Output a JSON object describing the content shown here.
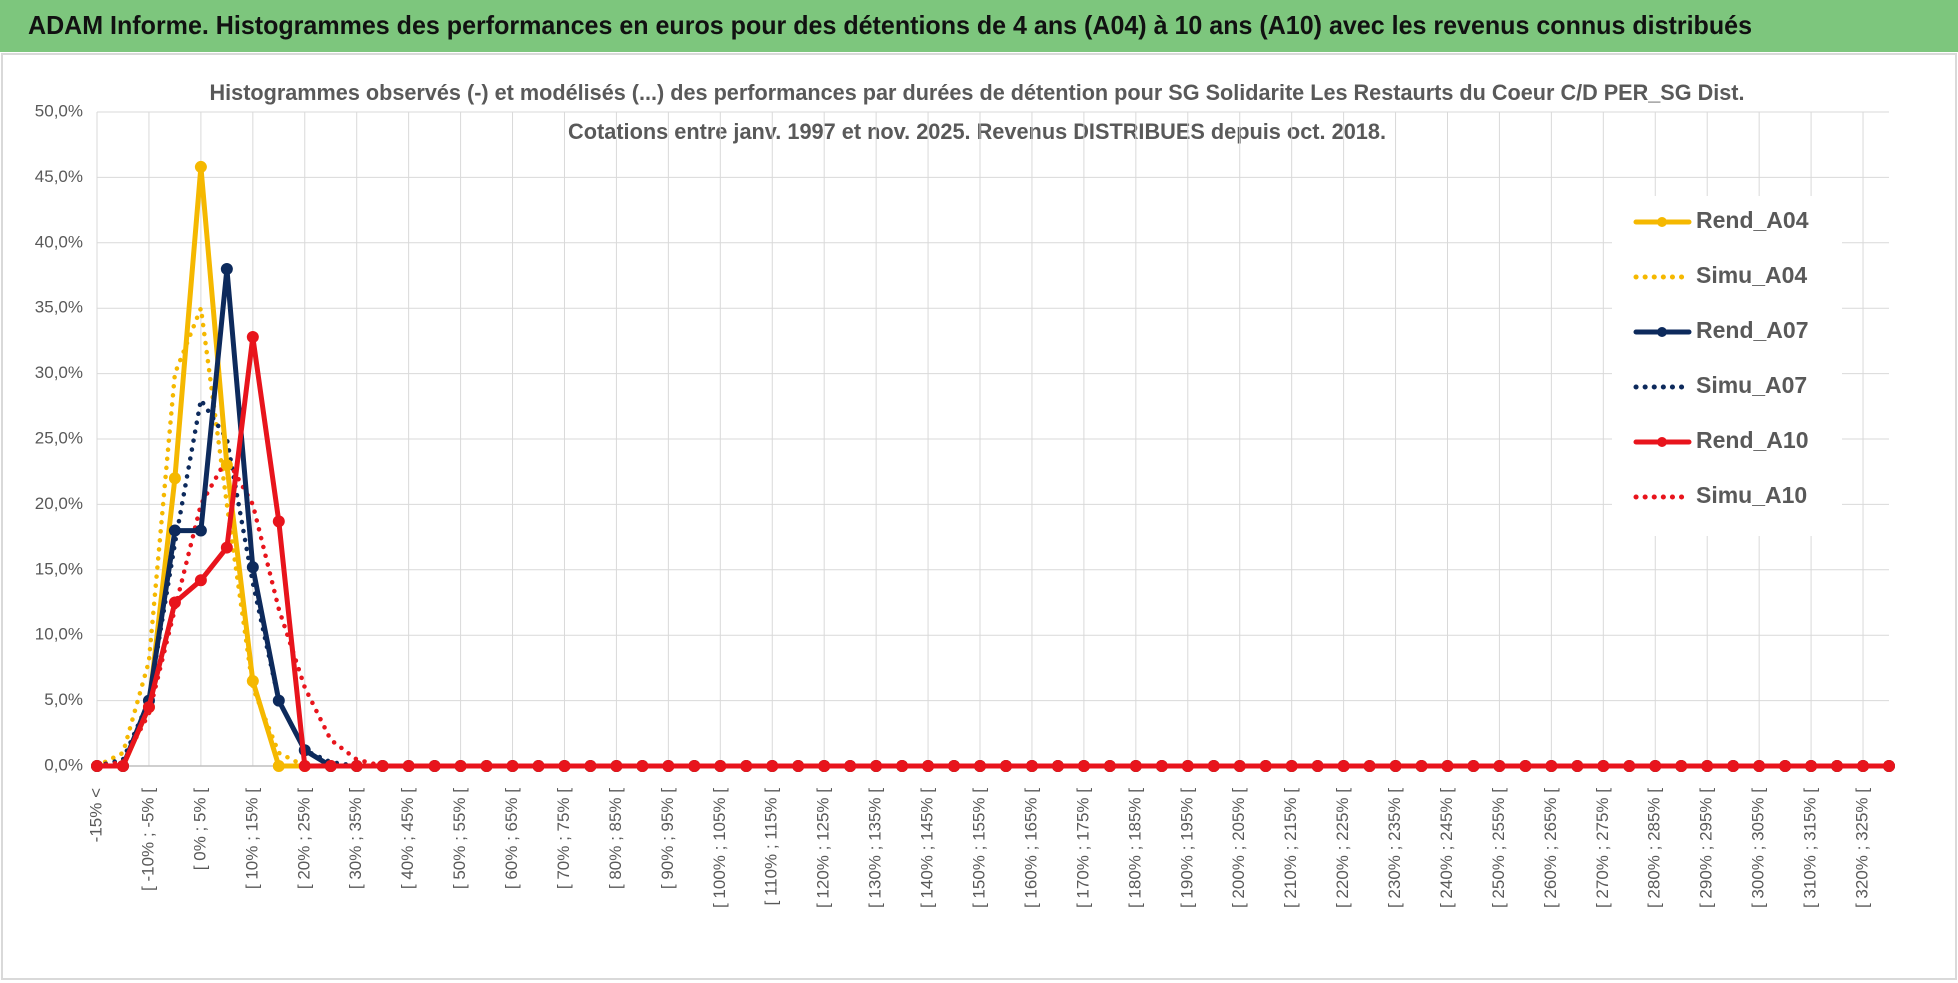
{
  "header": {
    "title": "ADAM Informe. Histogrammes des performances en euros pour des détentions de 4 ans (A04) à 10 ans (A10) avec les revenus connus distribués"
  },
  "chart_data": {
    "type": "line",
    "title": "Histogrammes observés (-) et modélisés (...) des performances par durées de détention pour SG Solidarite Les Restaurts du Coeur C/D PER_SG Dist.",
    "subtitle": "Cotations entre janv. 1997 et nov. 2025. Revenus DISTRIBUES depuis oct. 2018.",
    "categories": [
      "-15% <",
      null,
      "[ -10% ; -5% [",
      null,
      "[ 0% ; 5% [",
      null,
      "[ 10% ; 15% [",
      null,
      "[ 20% ; 25% [",
      null,
      "[ 30% ; 35% [",
      null,
      "[ 40% ; 45% [",
      null,
      "[ 50% ; 55% [",
      null,
      "[ 60% ; 65% [",
      null,
      "[ 70% ; 75% [",
      null,
      "[ 80% ; 85% [",
      null,
      "[ 90% ; 95% [",
      null,
      "[ 100% ; 105% [",
      null,
      "[ 110% ; 115% [",
      null,
      "[ 120% ; 125% [",
      null,
      "[ 130% ; 135% [",
      null,
      "[ 140% ; 145% [",
      null,
      "[ 150% ; 155% [",
      null,
      "[ 160% ; 165% [",
      null,
      "[ 170% ; 175% [",
      null,
      "[ 180% ; 185% [",
      null,
      "[ 190% ; 195% [",
      null,
      "[ 200% ; 205% [",
      null,
      "[ 210% ; 215% [",
      null,
      "[ 220% ; 225% [",
      null,
      "[ 230% ; 235% [",
      null,
      "[ 240% ; 245% [",
      null,
      "[ 250% ; 255% [",
      null,
      "[ 260% ; 265% [",
      null,
      "[ 270% ; 275% [",
      null,
      "[ 280% ; 285% [",
      null,
      "[ 290% ; 295% [",
      null,
      "[ 300% ; 305% [",
      null,
      "[ 310% ; 315% [",
      null,
      "[ 320% ; 325% [",
      null
    ],
    "series": [
      {
        "name": "Rend_A04",
        "color": "#f5b800",
        "line_style": "solid",
        "markers": true,
        "values": [
          0,
          0,
          4.5,
          22,
          45.8,
          23,
          6.5,
          0,
          0,
          0,
          0,
          0,
          0,
          0,
          0,
          0,
          0,
          0,
          0,
          0,
          0,
          0,
          0,
          0,
          0,
          0,
          0,
          0,
          0,
          0,
          0,
          0,
          0,
          0,
          0,
          0,
          0,
          0,
          0,
          0,
          0,
          0,
          0,
          0,
          0,
          0,
          0,
          0,
          0,
          0,
          0,
          0,
          0,
          0,
          0,
          0,
          0,
          0,
          0,
          0,
          0,
          0,
          0,
          0,
          0,
          0,
          0,
          0,
          0,
          0
        ]
      },
      {
        "name": "Simu_A04",
        "color": "#f5b800",
        "line_style": "dotted",
        "markers": false,
        "values": [
          0,
          1,
          8,
          30,
          35,
          20,
          6,
          1,
          0,
          0,
          0,
          0,
          0,
          0,
          0,
          0,
          0,
          0,
          0,
          0,
          0,
          0,
          0,
          0,
          0,
          0,
          0,
          0,
          0,
          0,
          0,
          0,
          0,
          0,
          0,
          0,
          0,
          0,
          0,
          0,
          0,
          0,
          0,
          0,
          0,
          0,
          0,
          0,
          0,
          0,
          0,
          0,
          0,
          0,
          0,
          0,
          0,
          0,
          0,
          0,
          0,
          0,
          0,
          0,
          0,
          0,
          0,
          0,
          0,
          0
        ]
      },
      {
        "name": "Rend_A07",
        "color": "#0d2a5c",
        "line_style": "solid",
        "markers": true,
        "values": [
          0,
          0,
          5,
          18,
          18,
          38,
          15.2,
          5,
          1.2,
          0,
          0,
          0,
          0,
          0,
          0,
          0,
          0,
          0,
          0,
          0,
          0,
          0,
          0,
          0,
          0,
          0,
          0,
          0,
          0,
          0,
          0,
          0,
          0,
          0,
          0,
          0,
          0,
          0,
          0,
          0,
          0,
          0,
          0,
          0,
          0,
          0,
          0,
          0,
          0,
          0,
          0,
          0,
          0,
          0,
          0,
          0,
          0,
          0,
          0,
          0,
          0,
          0,
          0,
          0,
          0,
          0,
          0,
          0,
          0,
          0
        ]
      },
      {
        "name": "Simu_A07",
        "color": "#0d2a5c",
        "line_style": "dotted",
        "markers": false,
        "values": [
          0,
          0.5,
          5,
          17,
          28,
          25,
          14,
          5,
          1.2,
          0.3,
          0,
          0,
          0,
          0,
          0,
          0,
          0,
          0,
          0,
          0,
          0,
          0,
          0,
          0,
          0,
          0,
          0,
          0,
          0,
          0,
          0,
          0,
          0,
          0,
          0,
          0,
          0,
          0,
          0,
          0,
          0,
          0,
          0,
          0,
          0,
          0,
          0,
          0,
          0,
          0,
          0,
          0,
          0,
          0,
          0,
          0,
          0,
          0,
          0,
          0,
          0,
          0,
          0,
          0,
          0,
          0,
          0,
          0,
          0,
          0
        ]
      },
      {
        "name": "Rend_A10",
        "color": "#e8141c",
        "line_style": "solid",
        "markers": true,
        "values": [
          0,
          0,
          4.5,
          12.5,
          14.2,
          16.7,
          32.8,
          18.7,
          0,
          0,
          0,
          0,
          0,
          0,
          0,
          0,
          0,
          0,
          0,
          0,
          0,
          0,
          0,
          0,
          0,
          0,
          0,
          0,
          0,
          0,
          0,
          0,
          0,
          0,
          0,
          0,
          0,
          0,
          0,
          0,
          0,
          0,
          0,
          0,
          0,
          0,
          0,
          0,
          0,
          0,
          0,
          0,
          0,
          0,
          0,
          0,
          0,
          0,
          0,
          0,
          0,
          0,
          0,
          0,
          0,
          0,
          0,
          0,
          0,
          0
        ]
      },
      {
        "name": "Simu_A10",
        "color": "#e8141c",
        "line_style": "dotted",
        "markers": false,
        "values": [
          0,
          0.3,
          4,
          12,
          20,
          23.5,
          20,
          12,
          6,
          2,
          0.5,
          0,
          0,
          0,
          0,
          0,
          0,
          0,
          0,
          0,
          0,
          0,
          0,
          0,
          0,
          0,
          0,
          0,
          0,
          0,
          0,
          0,
          0,
          0,
          0,
          0,
          0,
          0,
          0,
          0,
          0,
          0,
          0,
          0,
          0,
          0,
          0,
          0,
          0,
          0,
          0,
          0,
          0,
          0,
          0,
          0,
          0,
          0,
          0,
          0,
          0,
          0,
          0,
          0,
          0,
          0,
          0,
          0,
          0,
          0
        ]
      }
    ],
    "ylim": [
      0,
      50
    ],
    "yticks": [
      {
        "value": 0,
        "label": "0,0%"
      },
      {
        "value": 5,
        "label": "5,0%"
      },
      {
        "value": 10,
        "label": "10,0%"
      },
      {
        "value": 15,
        "label": "15,0%"
      },
      {
        "value": 20,
        "label": "20,0%"
      },
      {
        "value": 25,
        "label": "25,0%"
      },
      {
        "value": 30,
        "label": "30,0%"
      },
      {
        "value": 35,
        "label": "35,0%"
      },
      {
        "value": 40,
        "label": "40,0%"
      },
      {
        "value": 45,
        "label": "45,0%"
      },
      {
        "value": 50,
        "label": "50,0%"
      }
    ],
    "grid": true,
    "legend": "right"
  }
}
